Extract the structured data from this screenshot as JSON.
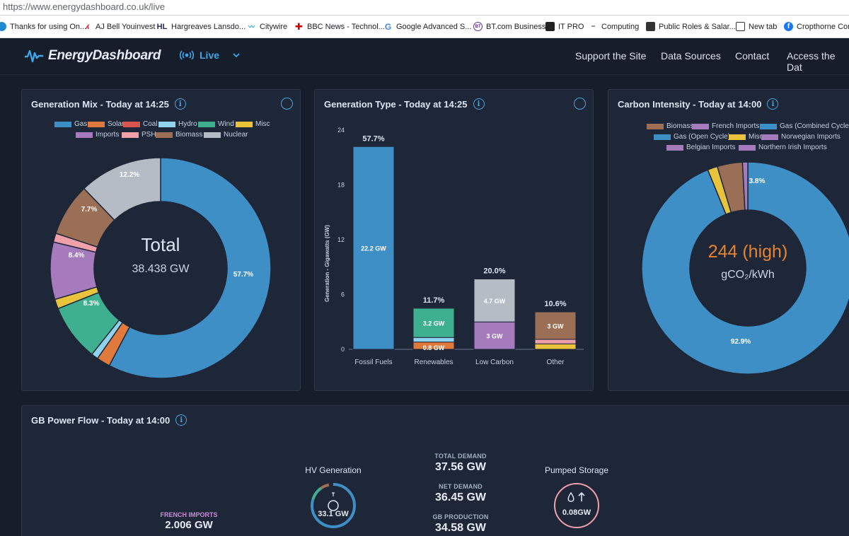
{
  "browser": {
    "url": "https://www.energydashboard.co.uk/live",
    "bookmarks": [
      {
        "label": "Thanks for using On...",
        "icon": "o"
      },
      {
        "label": "AJ Bell Youinvest",
        "icon": "aj"
      },
      {
        "label": "Hargreaves Lansdo...",
        "icon": "HL"
      },
      {
        "label": "Citywire",
        "icon": "cw"
      },
      {
        "label": "BBC News - Technol...",
        "icon": "bbc"
      },
      {
        "label": "Google Advanced S...",
        "icon": "G"
      },
      {
        "label": "BT.com Business",
        "icon": "BT"
      },
      {
        "label": "IT PRO",
        "icon": "it"
      },
      {
        "label": "Computing",
        "icon": "c"
      },
      {
        "label": "Public Roles & Salar...",
        "icon": "pr"
      },
      {
        "label": "New tab",
        "icon": "nt"
      },
      {
        "label": "Cropthorne Com",
        "icon": "f"
      }
    ]
  },
  "header": {
    "logo": "EnergyDashboard",
    "live_label": "Live",
    "nav": [
      "Support the Site",
      "Data Sources",
      "Contact",
      "Access the Dat"
    ]
  },
  "colors": {
    "gas": "#3d8fc6",
    "solar": "#e07a3c",
    "coal": "#d9534f",
    "hydro": "#8fd3ee",
    "wind": "#3fb08f",
    "misc": "#e8c33b",
    "imports": "#a57bbd",
    "psh": "#f0a0a8",
    "biomass": "#9a6f56",
    "nuclear": "#b6bcc6"
  },
  "generation_mix": {
    "title": "Generation Mix - Today at 14:25",
    "legend": [
      "Gas",
      "Solar",
      "Coal",
      "Hydro",
      "Wind",
      "Misc",
      "Imports",
      "PSH",
      "Biomass",
      "Nuclear"
    ],
    "center_title": "Total",
    "center_value": "38.438 GW",
    "labels": [
      "57.7%",
      "8.3%",
      "8.4%",
      "7.7%",
      "12.2%"
    ]
  },
  "chart_data": [
    {
      "type": "pie",
      "title": "Generation Mix - Today at 14:25",
      "categories": [
        "Gas",
        "Solar",
        "Hydro",
        "Wind",
        "Misc",
        "Imports",
        "PSH",
        "Biomass",
        "Nuclear"
      ],
      "values": [
        57.7,
        2.0,
        1.0,
        8.3,
        1.4,
        8.4,
        1.3,
        7.7,
        12.2
      ],
      "center": "Total 38.438 GW"
    },
    {
      "type": "bar",
      "title": "Generation Type - Today at 14:25",
      "categories": [
        "Fossil Fuels",
        "Renewables",
        "Low Carbon",
        "Other"
      ],
      "ylabel": "Generation - Gigawatts (GW)",
      "ylim": [
        0,
        24
      ],
      "yticks": [
        "24",
        "18",
        "12",
        "6",
        "0"
      ],
      "totals": [
        "57.7%",
        "11.7%",
        "20.0%",
        "10.6%"
      ],
      "series": [
        {
          "name": "Gas",
          "values": [
            22.2,
            0,
            0,
            0
          ]
        },
        {
          "name": "Solar",
          "values": [
            0,
            0.8,
            0,
            0
          ]
        },
        {
          "name": "Hydro",
          "values": [
            0,
            0.5,
            0,
            0
          ]
        },
        {
          "name": "Wind",
          "values": [
            0,
            3.2,
            0,
            0
          ]
        },
        {
          "name": "Nuclear",
          "values": [
            0,
            0,
            4.7,
            0
          ]
        },
        {
          "name": "Biomass",
          "values": [
            0,
            0,
            0,
            3
          ]
        },
        {
          "name": "Imports",
          "values": [
            0,
            0,
            3,
            0
          ]
        }
      ],
      "labels": {
        "fossil": "22.2 GW",
        "wind": "3.2 GW",
        "solar": "0.8 GW",
        "nuclear": "4.7 GW",
        "lowcarbon_imports": "3 GW",
        "biomass": "3 GW"
      }
    },
    {
      "type": "pie",
      "title": "Carbon Intensity - Today at 14:00",
      "categories": [
        "Gas (Combined Cycle)",
        "Misc",
        "Biomass",
        "Imports"
      ],
      "values": [
        92.9,
        1.5,
        3.8,
        0.8
      ],
      "center": "244 (high) gCO2/kWh"
    }
  ],
  "generation_type": {
    "title": "Generation Type - Today at 14:25",
    "axis_title": "Generation - Gigawatts (GW)"
  },
  "carbon": {
    "title": "Carbon Intensity - Today at 14:00",
    "legend": [
      "Biomass",
      "French Imports",
      "Gas (Combined Cycle)",
      "Gas (Open Cycle)",
      "Misc",
      "Norwegian Imports",
      "Belgian Imports",
      "Northern Irish Imports"
    ],
    "legend_colors": [
      "#9a6f56",
      "#a57bbd",
      "#3d8fc6",
      "#3d8fc6",
      "#e8c33b",
      "#a57bbd",
      "#a57bbd",
      "#a57bbd"
    ],
    "center_value": "244 (high)",
    "center_unit": "gCO₂/kWh",
    "labels": [
      "3.8%",
      "92.9%"
    ]
  },
  "power_flow": {
    "title": "GB Power Flow - Today at 14:00",
    "hv_label": "HV Generation",
    "hv_value": "33.1 GW",
    "total_demand_label": "TOTAL DEMAND",
    "total_demand": "37.56 GW",
    "net_demand_label": "NET DEMAND",
    "net_demand": "36.45 GW",
    "gb_production_label": "GB PRODUCTION",
    "gb_production": "34.58 GW",
    "pumped_label": "Pumped Storage",
    "pumped_value": "0.08GW",
    "french_label": "FRENCH IMPORTS",
    "french_value": "2.006 GW"
  }
}
